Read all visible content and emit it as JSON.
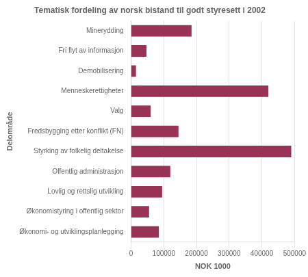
{
  "chart_data": {
    "type": "bar",
    "orientation": "horizontal",
    "title": "Tematisk fordeling av norsk bistand til godt styresett i 2002",
    "xlabel": "NOK 1000",
    "ylabel": "Delområde",
    "categories": [
      "Økonomi- og utviklingsplanlegging",
      "Økonomistyring i offentlig sektor",
      "Lovlig og rettslig utvikling",
      "Offentlig administrasjon",
      "Styrking av folkelig deltakelse",
      "Fredsbygging etter konflikt (FN)",
      "Valg",
      "Menneskerettigheter",
      "Demobilisering",
      "Fri flyt av informasjon",
      "Minerydding"
    ],
    "values": [
      85000,
      55000,
      95000,
      120000,
      490000,
      145000,
      60000,
      420000,
      15000,
      47000,
      185000
    ],
    "color": "#993355",
    "xlim": [
      0,
      500000
    ],
    "xticks": [
      0,
      100000,
      200000,
      300000,
      400000,
      500000
    ],
    "grid": true
  }
}
